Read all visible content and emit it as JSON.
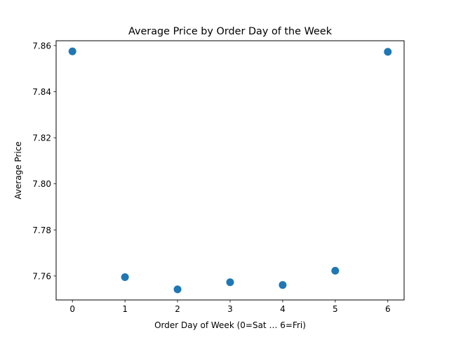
{
  "chart_data": {
    "type": "scatter",
    "title": "Average Price by Order Day of the Week",
    "xlabel": "Order Day of Week (0=Sat … 6=Fri)",
    "ylabel": "Average Price",
    "x": [
      0,
      1,
      2,
      3,
      4,
      5,
      6
    ],
    "y": [
      7.8575,
      7.7595,
      7.7542,
      7.7573,
      7.7561,
      7.7623,
      7.8573
    ],
    "xlim": [
      -0.31,
      6.31
    ],
    "ylim": [
      7.7496,
      7.8621
    ],
    "xticks": [
      0,
      1,
      2,
      3,
      4,
      5,
      6
    ],
    "xtick_labels": [
      "0",
      "1",
      "2",
      "3",
      "4",
      "5",
      "6"
    ],
    "yticks": [
      7.76,
      7.78,
      7.8,
      7.82,
      7.84,
      7.86
    ],
    "ytick_labels": [
      "7.76",
      "7.78",
      "7.80",
      "7.82",
      "7.84",
      "7.86"
    ],
    "grid": false,
    "marker_color": "#1f77b4"
  }
}
